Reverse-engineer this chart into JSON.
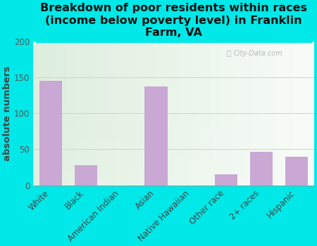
{
  "categories": [
    "White",
    "Black",
    "American Indian",
    "Asian",
    "Native Hawaiian",
    "Other race",
    "2+ races",
    "Hispanic"
  ],
  "values": [
    145,
    28,
    0,
    138,
    0,
    15,
    47,
    40
  ],
  "bar_color": "#c9a8d4",
  "background_color": "#00e8e8",
  "plot_bg_left": "#ddeedd",
  "plot_bg_right": "#f5f8f5",
  "title": "Breakdown of poor residents within races\n(income below poverty level) in Franklin\nFarm, VA",
  "ylabel": "absolute numbers",
  "ylim": [
    0,
    200
  ],
  "yticks": [
    0,
    50,
    100,
    150,
    200
  ],
  "watermark": "City-Data.com",
  "title_fontsize": 11.5,
  "ylabel_fontsize": 9.5,
  "tick_fontsize": 8.5
}
